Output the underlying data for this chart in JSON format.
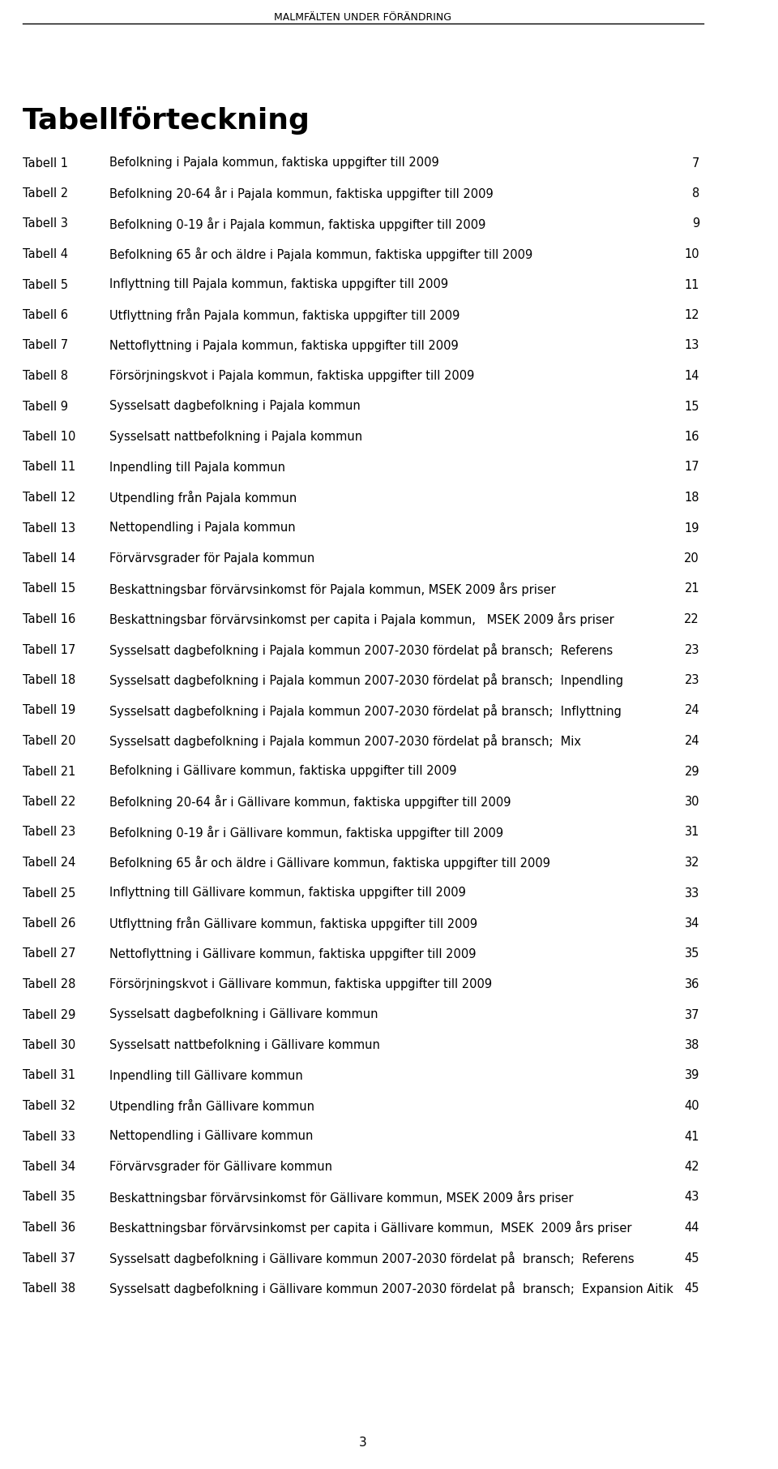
{
  "header": "MALMFÄLTEN UNDER FÖRÄNDRING",
  "title": "Tabellförteckning",
  "entries": [
    {
      "label": "Tabell 1",
      "text": "Befolkning i Pajala kommun, faktiska uppgifter till 2009",
      "page": "7"
    },
    {
      "label": "Tabell 2",
      "text": "Befolkning 20-64 år i Pajala kommun, faktiska uppgifter till 2009",
      "page": "8"
    },
    {
      "label": "Tabell 3",
      "text": "Befolkning 0-19 år i Pajala kommun, faktiska uppgifter till 2009",
      "page": "9"
    },
    {
      "label": "Tabell 4",
      "text": "Befolkning 65 år och äldre i Pajala kommun, faktiska uppgifter till 2009",
      "page": "10"
    },
    {
      "label": "Tabell 5",
      "text": "Inflyttning till Pajala kommun, faktiska uppgifter till 2009",
      "page": "11"
    },
    {
      "label": "Tabell 6",
      "text": "Utflyttning från Pajala kommun, faktiska uppgifter till 2009",
      "page": "12"
    },
    {
      "label": "Tabell 7",
      "text": "Nettoflyttning i Pajala kommun, faktiska uppgifter till 2009",
      "page": "13"
    },
    {
      "label": "Tabell 8",
      "text": "Försörjningskvot i Pajala kommun, faktiska uppgifter till 2009",
      "page": "14"
    },
    {
      "label": "Tabell 9",
      "text": "Sysselsatt dagbefolkning i Pajala kommun",
      "page": "15"
    },
    {
      "label": "Tabell 10",
      "text": "Sysselsatt nattbefolkning i Pajala kommun",
      "page": "16"
    },
    {
      "label": "Tabell 11",
      "text": "Inpendling till Pajala kommun",
      "page": "17"
    },
    {
      "label": "Tabell 12",
      "text": "Utpendling från Pajala kommun",
      "page": "18"
    },
    {
      "label": "Tabell 13",
      "text": "Nettopendling i Pajala kommun",
      "page": "19"
    },
    {
      "label": "Tabell 14",
      "text": "Förvärvsgrader för Pajala kommun",
      "page": "20"
    },
    {
      "label": "Tabell 15",
      "text": "Beskattningsbar förvärvsinkomst för Pajala kommun, MSEK 2009 års priser",
      "page": "21"
    },
    {
      "label": "Tabell 16",
      "text": "Beskattningsbar förvärvsinkomst per capita i Pajala kommun,   MSEK 2009 års priser",
      "page": "22"
    },
    {
      "label": "Tabell 17",
      "text": "Sysselsatt dagbefolkning i Pajala kommun 2007-2030 fördelat på bransch;  Referens",
      "page": "23"
    },
    {
      "label": "Tabell 18",
      "text": "Sysselsatt dagbefolkning i Pajala kommun 2007-2030 fördelat på bransch;  Inpendling",
      "page": "23"
    },
    {
      "label": "Tabell 19",
      "text": "Sysselsatt dagbefolkning i Pajala kommun 2007-2030 fördelat på bransch;  Inflyttning",
      "page": "24"
    },
    {
      "label": "Tabell 20",
      "text": "Sysselsatt dagbefolkning i Pajala kommun 2007-2030 fördelat på bransch;  Mix",
      "page": "24"
    },
    {
      "label": "Tabell 21",
      "text": "Befolkning i Gällivare kommun, faktiska uppgifter till 2009",
      "page": "29"
    },
    {
      "label": "Tabell 22",
      "text": "Befolkning 20-64 år i Gällivare kommun, faktiska uppgifter till 2009",
      "page": "30"
    },
    {
      "label": "Tabell 23",
      "text": "Befolkning 0-19 år i Gällivare kommun, faktiska uppgifter till 2009",
      "page": "31"
    },
    {
      "label": "Tabell 24",
      "text": "Befolkning 65 år och äldre i Gällivare kommun, faktiska uppgifter till 2009",
      "page": "32"
    },
    {
      "label": "Tabell 25",
      "text": "Inflyttning till Gällivare kommun, faktiska uppgifter till 2009",
      "page": "33"
    },
    {
      "label": "Tabell 26",
      "text": "Utflyttning från Gällivare kommun, faktiska uppgifter till 2009",
      "page": "34"
    },
    {
      "label": "Tabell 27",
      "text": "Nettoflyttning i Gällivare kommun, faktiska uppgifter till 2009",
      "page": "35"
    },
    {
      "label": "Tabell 28",
      "text": "Försörjningskvot i Gällivare kommun, faktiska uppgifter till 2009",
      "page": "36"
    },
    {
      "label": "Tabell 29",
      "text": "Sysselsatt dagbefolkning i Gällivare kommun",
      "page": "37"
    },
    {
      "label": "Tabell 30",
      "text": "Sysselsatt nattbefolkning i Gällivare kommun",
      "page": "38"
    },
    {
      "label": "Tabell 31",
      "text": "Inpendling till Gällivare kommun",
      "page": "39"
    },
    {
      "label": "Tabell 32",
      "text": "Utpendling från Gällivare kommun",
      "page": "40"
    },
    {
      "label": "Tabell 33",
      "text": "Nettopendling i Gällivare kommun",
      "page": "41"
    },
    {
      "label": "Tabell 34",
      "text": "Förvärvsgrader för Gällivare kommun",
      "page": "42"
    },
    {
      "label": "Tabell 35",
      "text": "Beskattningsbar förvärvsinkomst för Gällivare kommun, MSEK 2009 års priser",
      "page": "43"
    },
    {
      "label": "Tabell 36",
      "text": "Beskattningsbar förvärvsinkomst per capita i Gällivare kommun,  MSEK  2009 års priser",
      "page": "44"
    },
    {
      "label": "Tabell 37",
      "text": "Sysselsatt dagbefolkning i Gällivare kommun 2007-2030 fördelat på  bransch;  Referens",
      "page": "45"
    },
    {
      "label": "Tabell 38",
      "text": "Sysselsatt dagbefolkning i Gällivare kommun 2007-2030 fördelat på  bransch;  Expansion Aitik",
      "page": "45"
    }
  ],
  "footer_page": "3",
  "bg_color": "#ffffff",
  "text_color": "#000000",
  "header_color": "#000000"
}
